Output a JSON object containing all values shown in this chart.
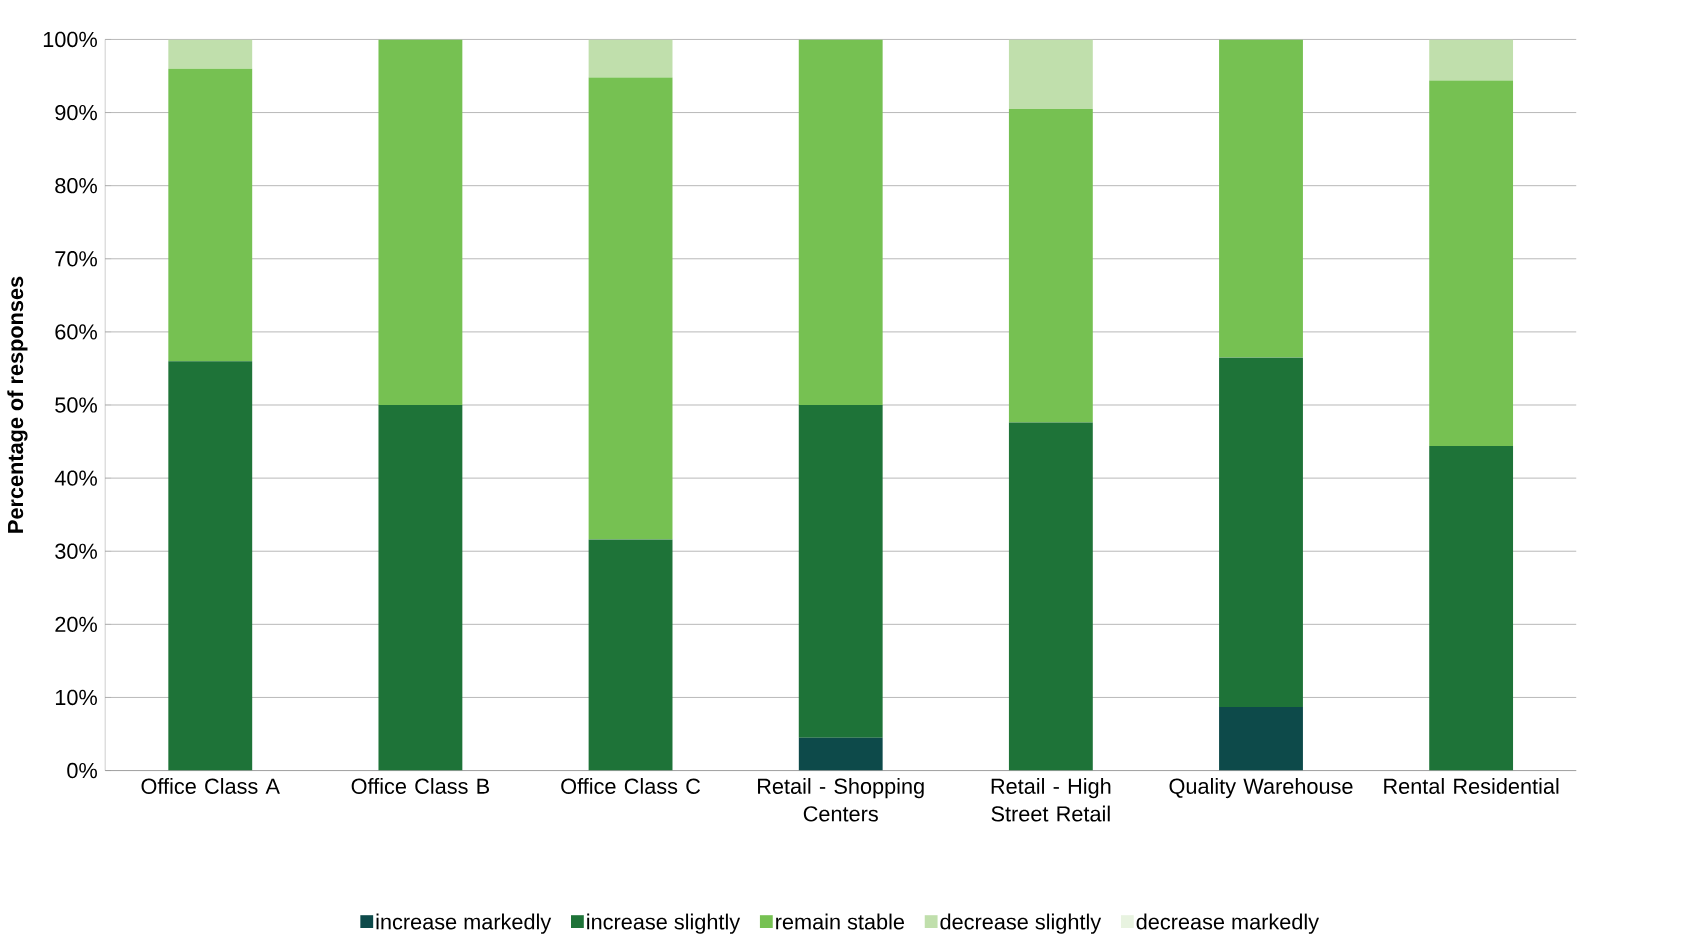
{
  "chart_data": {
    "type": "bar",
    "stacked": true,
    "ylabel": "Percentage of responses",
    "categories": [
      "Office Class A",
      "Office Class B",
      "Office Class C",
      "Retail - Shopping Centers",
      "Retail - High Street Retail",
      "Quality Warehouse",
      "Rental Residential"
    ],
    "series": [
      {
        "name": "increase markedly",
        "color": "#0d4a4a",
        "values": [
          0,
          0,
          0,
          4.5,
          0,
          8.7,
          0
        ]
      },
      {
        "name": "increase slightly",
        "color": "#1e7338",
        "values": [
          56,
          50,
          31.6,
          45.5,
          47.6,
          47.8,
          44.4
        ]
      },
      {
        "name": "remain stable",
        "color": "#76c152",
        "values": [
          40,
          50,
          63.2,
          50,
          42.9,
          43.5,
          50
        ]
      },
      {
        "name": "decrease slightly",
        "color": "#c0dfac",
        "values": [
          4,
          0,
          5.2,
          0,
          9.5,
          0,
          5.6
        ]
      },
      {
        "name": "decrease markedly",
        "color": "#e8f3e0",
        "values": [
          0,
          0,
          0,
          0,
          0,
          0,
          0
        ]
      }
    ],
    "ylim": [
      0,
      100
    ],
    "yticks": [
      {
        "value": 0,
        "label": "0%"
      },
      {
        "value": 10,
        "label": "10%"
      },
      {
        "value": 20,
        "label": "20%"
      },
      {
        "value": 30,
        "label": "30%"
      },
      {
        "value": 40,
        "label": "40%"
      },
      {
        "value": 50,
        "label": "50%"
      },
      {
        "value": 60,
        "label": "60%"
      },
      {
        "value": 70,
        "label": "70%"
      },
      {
        "value": 80,
        "label": "80%"
      },
      {
        "value": 90,
        "label": "90%"
      },
      {
        "value": 100,
        "label": "100%"
      }
    ],
    "grid": "y",
    "legend": "bottom"
  }
}
